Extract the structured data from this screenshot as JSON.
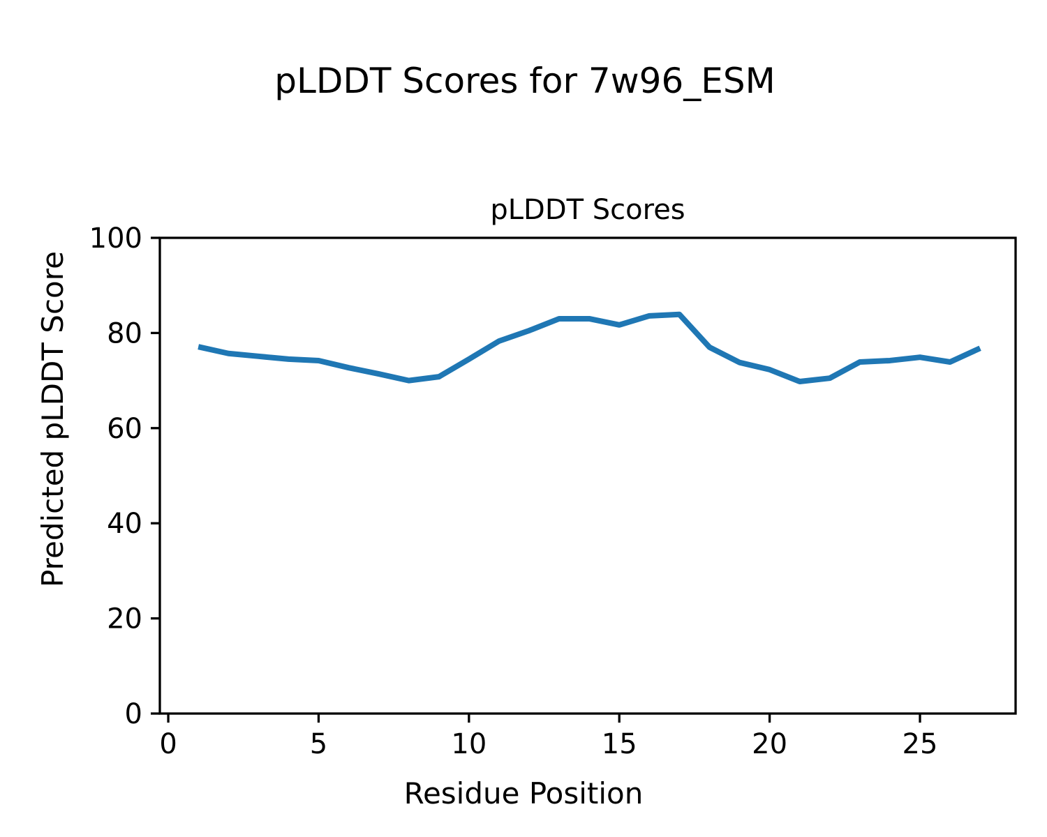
{
  "figure": {
    "suptitle": "pLDDT Scores for 7w96_ESM",
    "background": "#ffffff",
    "text_color": "#000000"
  },
  "chart_data": {
    "type": "line",
    "title": "pLDDT Scores",
    "xlabel": "Residue Position",
    "ylabel": "Predicted pLDDT Score",
    "x": [
      1,
      2,
      3,
      4,
      5,
      6,
      7,
      8,
      9,
      10,
      11,
      12,
      13,
      14,
      15,
      16,
      17,
      18,
      19,
      20,
      21,
      22,
      23,
      24,
      25,
      26,
      27
    ],
    "y": [
      77.1,
      75.7,
      75.1,
      74.5,
      74.2,
      72.7,
      71.4,
      70.0,
      70.8,
      74.5,
      78.3,
      80.5,
      83.0,
      83.0,
      81.7,
      83.6,
      83.9,
      77.0,
      73.8,
      72.3,
      69.8,
      70.5,
      73.9,
      74.2,
      74.9,
      73.9,
      76.8
    ],
    "xlim": [
      -0.28,
      28.18
    ],
    "ylim": [
      0,
      100
    ],
    "xticks": [
      0,
      5,
      10,
      15,
      20,
      25
    ],
    "yticks": [
      0,
      20,
      40,
      60,
      80,
      100
    ],
    "grid": false,
    "legend": null,
    "line_color": "#1f77b4",
    "line_width": 8,
    "spine_color": "#000000",
    "spine_width": 3.3,
    "tick_length": 13,
    "tick_width": 3.3
  }
}
